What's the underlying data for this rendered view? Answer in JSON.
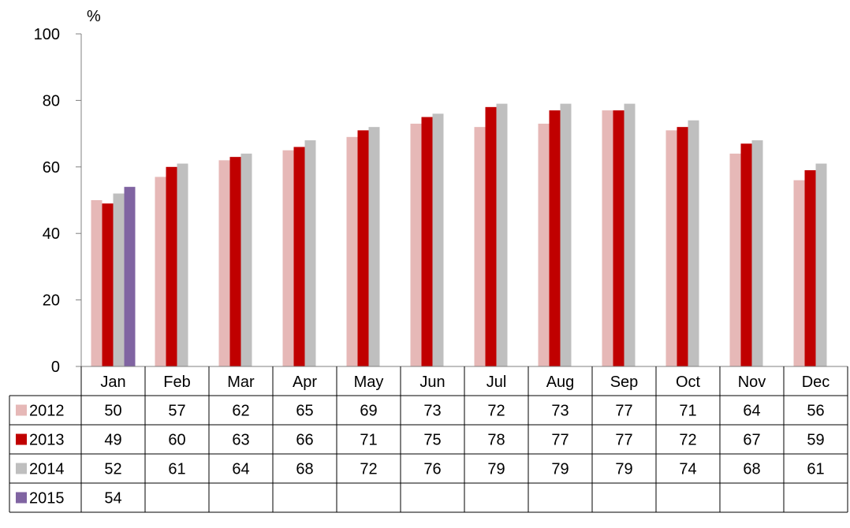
{
  "chart_data": {
    "type": "bar",
    "ylabel": "%",
    "ylim": [
      0,
      100
    ],
    "yticks": [
      0,
      20,
      40,
      60,
      80,
      100
    ],
    "grid": false,
    "legend": "data-table-left",
    "categories": [
      "Jan",
      "Feb",
      "Mar",
      "Apr",
      "May",
      "Jun",
      "Jul",
      "Aug",
      "Sep",
      "Oct",
      "Nov",
      "Dec"
    ],
    "series": [
      {
        "name": "2012",
        "color": "#E6B8B7",
        "values": [
          50,
          57,
          62,
          65,
          69,
          73,
          72,
          73,
          77,
          71,
          64,
          56
        ]
      },
      {
        "name": "2013",
        "color": "#C00000",
        "values": [
          49,
          60,
          63,
          66,
          71,
          75,
          78,
          77,
          77,
          72,
          67,
          59
        ]
      },
      {
        "name": "2014",
        "color": "#BFBFBF",
        "values": [
          52,
          61,
          64,
          68,
          72,
          76,
          79,
          79,
          79,
          74,
          68,
          61
        ]
      },
      {
        "name": "2015",
        "color": "#8064A2",
        "values": [
          54,
          null,
          null,
          null,
          null,
          null,
          null,
          null,
          null,
          null,
          null,
          null
        ]
      }
    ]
  }
}
